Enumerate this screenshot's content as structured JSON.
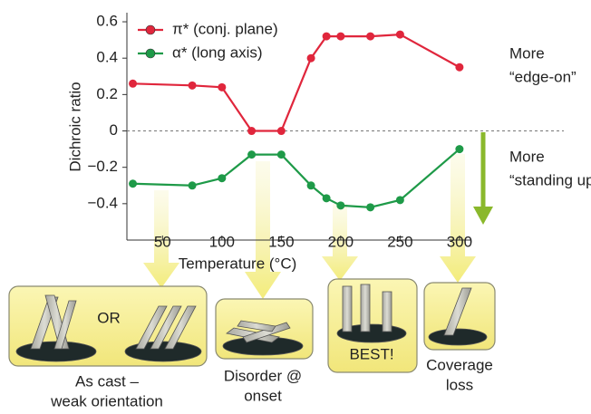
{
  "chart_data": {
    "type": "line",
    "x_label": "Temperature (°C)",
    "y_label": "Dichroic ratio",
    "x": [
      25,
      75,
      100,
      125,
      150,
      175,
      188,
      200,
      225,
      250,
      300
    ],
    "series": [
      {
        "name": "π* (conj. plane)",
        "color": "#e0263c",
        "values": [
          0.26,
          0.25,
          0.24,
          0,
          0,
          0.4,
          0.52,
          0.52,
          0.52,
          0.53,
          0.35
        ]
      },
      {
        "name": "α* (long axis)",
        "color": "#1e9a48",
        "values": [
          -0.29,
          -0.3,
          -0.26,
          -0.13,
          -0.13,
          -0.3,
          -0.37,
          -0.41,
          -0.42,
          -0.38,
          -0.1
        ]
      }
    ],
    "xlim": [
      20,
      310
    ],
    "xticks": [
      50,
      100,
      150,
      200,
      250,
      300
    ],
    "ylim": [
      -0.6,
      0.65
    ],
    "yticks": [
      0.6,
      0.4,
      0.2,
      0,
      {
        "value": -0.2,
        "label": "−0.2"
      },
      {
        "value": -0.4,
        "label": "−0.4"
      }
    ],
    "annotations": [
      [
        "More",
        "“edge-on”"
      ],
      [
        "More",
        "“standing up”"
      ]
    ]
  },
  "panels": [
    {
      "label": "OR",
      "caption": [
        "As cast –",
        "weak orientation"
      ]
    },
    {
      "caption": [
        "Disorder @",
        "onset"
      ]
    },
    {
      "label": "BEST!"
    },
    {
      "caption": [
        "Coverage",
        "loss"
      ]
    }
  ]
}
